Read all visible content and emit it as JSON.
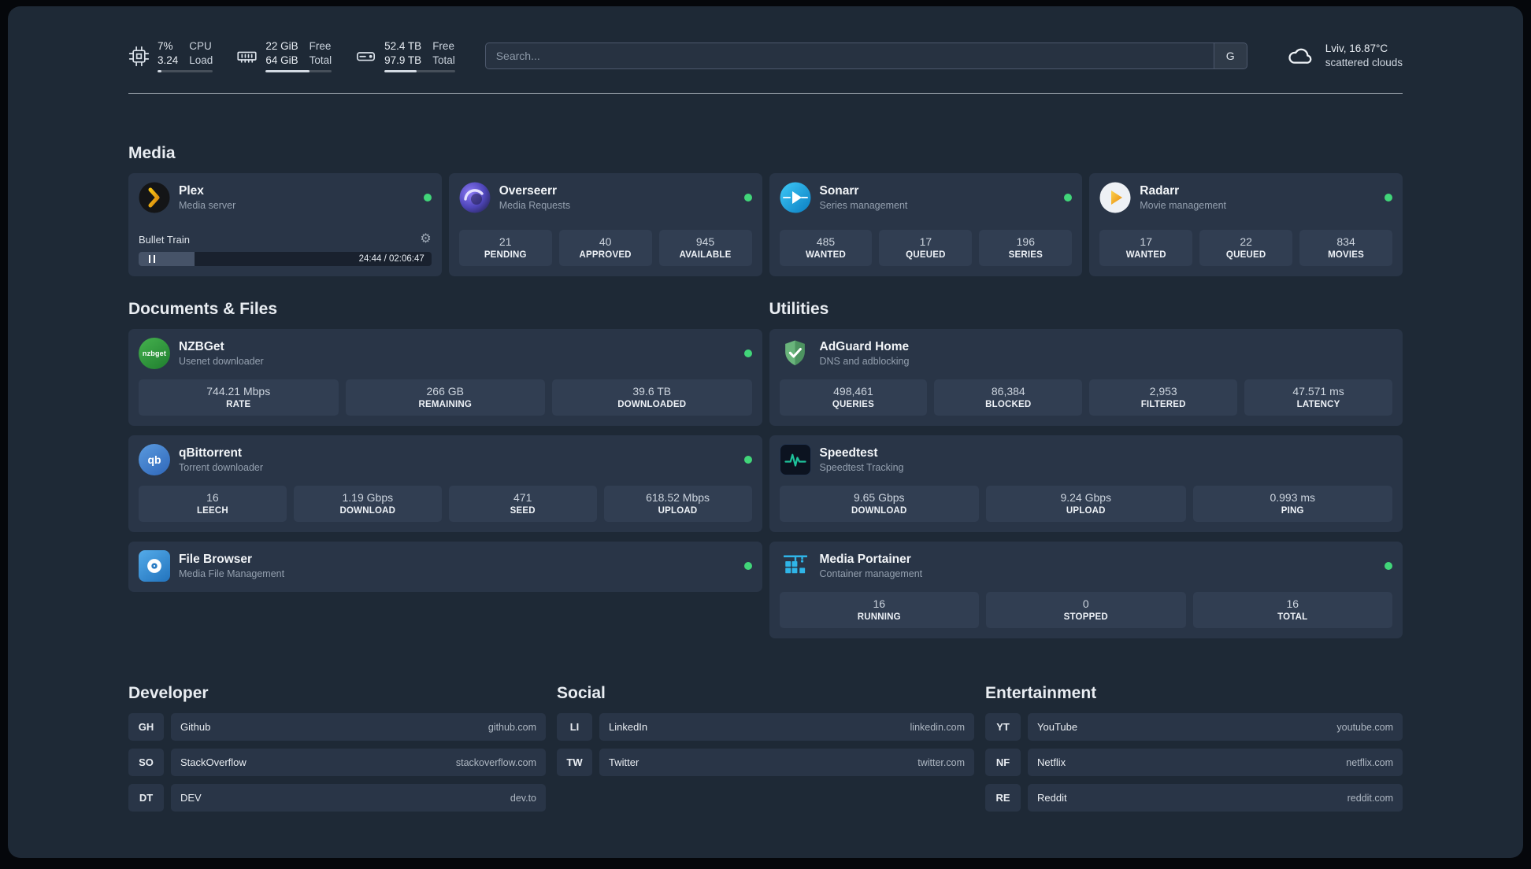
{
  "colors": {
    "page-bg": "#1e2936",
    "card-bg": "#293547",
    "stat-bg": "#313e52",
    "status-green": "#41d579",
    "plex-amber": "#e5a00d"
  },
  "topbar": {
    "cpu": {
      "value_top": "7%",
      "value_bottom": "3.24",
      "label_top": "CPU",
      "label_bottom": "Load",
      "bar_percent": 7
    },
    "memory": {
      "value_top": "22 GiB",
      "value_bottom": "64 GiB",
      "label_top": "Free",
      "label_bottom": "Total",
      "bar_percent": 66
    },
    "disk": {
      "value_top": "52.4 TB",
      "value_bottom": "97.9 TB",
      "label_top": "Free",
      "label_bottom": "Total",
      "bar_percent": 46
    },
    "search": {
      "placeholder": "Search...",
      "provider": "G"
    },
    "weather": {
      "location": "Lviv, 16.87°C",
      "condition": "scattered clouds"
    }
  },
  "sections": {
    "media": "Media",
    "documents": "Documents & Files",
    "utilities": "Utilities"
  },
  "services": {
    "plex": {
      "name": "Plex",
      "desc": "Media server",
      "player": {
        "title": "Bullet Train",
        "time": "24:44 / 02:06:47",
        "progress_percent": 19
      }
    },
    "overseerr": {
      "name": "Overseerr",
      "desc": "Media Requests",
      "stats": [
        {
          "value": "21",
          "label": "PENDING"
        },
        {
          "value": "40",
          "label": "APPROVED"
        },
        {
          "value": "945",
          "label": "AVAILABLE"
        }
      ]
    },
    "sonarr": {
      "name": "Sonarr",
      "desc": "Series management",
      "stats": [
        {
          "value": "485",
          "label": "WANTED"
        },
        {
          "value": "17",
          "label": "QUEUED"
        },
        {
          "value": "196",
          "label": "SERIES"
        }
      ]
    },
    "radarr": {
      "name": "Radarr",
      "desc": "Movie management",
      "stats": [
        {
          "value": "17",
          "label": "WANTED"
        },
        {
          "value": "22",
          "label": "QUEUED"
        },
        {
          "value": "834",
          "label": "MOVIES"
        }
      ]
    },
    "nzbget": {
      "name": "NZBGet",
      "desc": "Usenet downloader",
      "icon_text": "nzbget",
      "stats": [
        {
          "value": "744.21 Mbps",
          "label": "RATE"
        },
        {
          "value": "266 GB",
          "label": "REMAINING"
        },
        {
          "value": "39.6 TB",
          "label": "DOWNLOADED"
        }
      ]
    },
    "qbittorrent": {
      "name": "qBittorrent",
      "desc": "Torrent downloader",
      "icon_text": "qb",
      "stats": [
        {
          "value": "16",
          "label": "LEECH"
        },
        {
          "value": "1.19 Gbps",
          "label": "DOWNLOAD"
        },
        {
          "value": "471",
          "label": "SEED"
        },
        {
          "value": "618.52 Mbps",
          "label": "UPLOAD"
        }
      ]
    },
    "filebrowser": {
      "name": "File Browser",
      "desc": "Media File Management"
    },
    "adguard": {
      "name": "AdGuard Home",
      "desc": "DNS and adblocking",
      "stats": [
        {
          "value": "498,461",
          "label": "QUERIES"
        },
        {
          "value": "86,384",
          "label": "BLOCKED"
        },
        {
          "value": "2,953",
          "label": "FILTERED"
        },
        {
          "value": "47.571 ms",
          "label": "LATENCY"
        }
      ]
    },
    "speedtest": {
      "name": "Speedtest",
      "desc": "Speedtest Tracking",
      "stats": [
        {
          "value": "9.65 Gbps",
          "label": "DOWNLOAD"
        },
        {
          "value": "9.24 Gbps",
          "label": "UPLOAD"
        },
        {
          "value": "0.993 ms",
          "label": "PING"
        }
      ]
    },
    "portainer": {
      "name": "Media Portainer",
      "desc": "Container management",
      "stats": [
        {
          "value": "16",
          "label": "RUNNING"
        },
        {
          "value": "0",
          "label": "STOPPED"
        },
        {
          "value": "16",
          "label": "TOTAL"
        }
      ]
    }
  },
  "bookmarks": [
    {
      "title": "Developer",
      "items": [
        {
          "abbr": "GH",
          "name": "Github",
          "url": "github.com"
        },
        {
          "abbr": "SO",
          "name": "StackOverflow",
          "url": "stackoverflow.com"
        },
        {
          "abbr": "DT",
          "name": "DEV",
          "url": "dev.to"
        }
      ]
    },
    {
      "title": "Social",
      "items": [
        {
          "abbr": "LI",
          "name": "LinkedIn",
          "url": "linkedin.com"
        },
        {
          "abbr": "TW",
          "name": "Twitter",
          "url": "twitter.com"
        }
      ]
    },
    {
      "title": "Entertainment",
      "items": [
        {
          "abbr": "YT",
          "name": "YouTube",
          "url": "youtube.com"
        },
        {
          "abbr": "NF",
          "name": "Netflix",
          "url": "netflix.com"
        },
        {
          "abbr": "RE",
          "name": "Reddit",
          "url": "reddit.com"
        }
      ]
    }
  ]
}
